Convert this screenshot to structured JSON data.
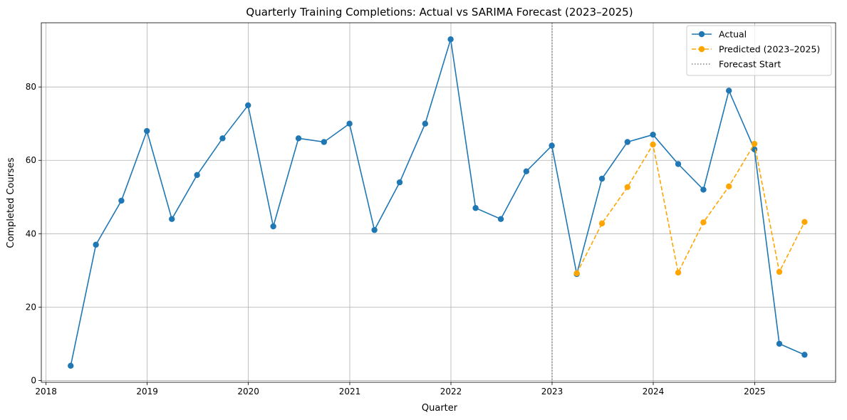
{
  "chart_data": {
    "type": "line",
    "title": "Quarterly Training Completions: Actual vs SARIMA Forecast (2023–2025)",
    "xlabel": "Quarter",
    "ylabel": "Completed Courses",
    "xlim": [
      "2017-12-15",
      "2025-10-20"
    ],
    "ylim": [
      -0.5,
      97.5
    ],
    "x_ticks": [
      "2018-01-01",
      "2019-01-01",
      "2020-01-01",
      "2021-01-01",
      "2022-01-01",
      "2023-01-01",
      "2024-01-01",
      "2025-01-01"
    ],
    "x_tick_labels": [
      "2018",
      "2019",
      "2020",
      "2021",
      "2022",
      "2023",
      "2024",
      "2025"
    ],
    "y_ticks": [
      0,
      20,
      40,
      60,
      80
    ],
    "y_tick_labels": [
      "0",
      "20",
      "40",
      "60",
      "80"
    ],
    "grid": true,
    "legend_position": "top-right",
    "series": [
      {
        "name": "Actual",
        "style": "solid-marker",
        "color": "#1f77b4",
        "x": [
          "2018-03-31",
          "2018-06-30",
          "2018-09-30",
          "2018-12-31",
          "2019-03-31",
          "2019-06-30",
          "2019-09-30",
          "2019-12-31",
          "2020-03-31",
          "2020-06-30",
          "2020-09-30",
          "2020-12-31",
          "2021-03-31",
          "2021-06-30",
          "2021-09-30",
          "2021-12-31",
          "2022-03-31",
          "2022-06-30",
          "2022-09-30",
          "2022-12-31",
          "2023-03-31",
          "2023-06-30",
          "2023-09-30",
          "2023-12-31",
          "2024-03-31",
          "2024-06-30",
          "2024-09-30",
          "2024-12-31",
          "2025-03-31",
          "2025-06-30"
        ],
        "y": [
          4,
          37,
          49,
          68,
          44,
          56,
          66,
          75,
          42,
          66,
          65,
          70,
          41,
          54,
          70,
          93,
          47,
          44,
          57,
          64,
          29,
          55,
          65,
          67,
          59,
          52,
          79,
          63,
          10,
          7
        ]
      },
      {
        "name": "Predicted (2023–2025)",
        "style": "dashed-marker",
        "color": "#ffa500",
        "x": [
          "2023-03-31",
          "2023-06-30",
          "2023-09-30",
          "2023-12-31",
          "2024-03-31",
          "2024-06-30",
          "2024-09-30",
          "2024-12-31",
          "2025-03-31",
          "2025-06-30"
        ],
        "y": [
          29.2,
          42.8,
          52.7,
          64.3,
          29.4,
          43.1,
          52.9,
          64.5,
          29.6,
          43.2
        ]
      }
    ],
    "annotations": [
      {
        "name": "Forecast Start",
        "type": "vline",
        "style": "dotted",
        "color": "#808080",
        "x": "2023-01-01"
      }
    ]
  }
}
